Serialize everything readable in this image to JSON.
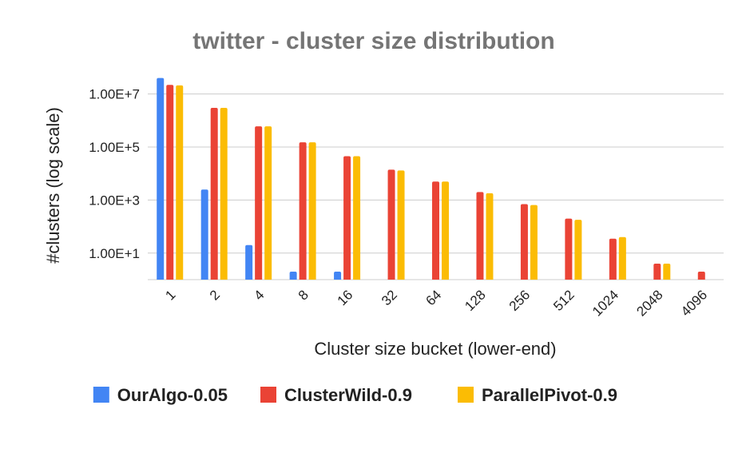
{
  "chart_data": {
    "type": "bar",
    "title": "twitter - cluster size distribution",
    "xlabel": "Cluster size bucket (lower-end)",
    "ylabel": "#clusters (log scale)",
    "yscale": "log",
    "ylim": [
      1,
      60000000
    ],
    "yticks": [
      10,
      1000,
      100000,
      10000000
    ],
    "ytick_labels": [
      "1.00E+1",
      "1.00E+3",
      "1.00E+5",
      "1.00E+7"
    ],
    "grid": true,
    "legend_position": "bottom",
    "categories": [
      "1",
      "2",
      "4",
      "8",
      "16",
      "32",
      "64",
      "128",
      "256",
      "512",
      "1024",
      "2048",
      "4096"
    ],
    "series": [
      {
        "name": "OurAlgo-0.05",
        "color": "#4285F4",
        "values": [
          40000000,
          2500,
          20,
          2,
          2,
          null,
          null,
          null,
          null,
          null,
          null,
          null,
          null
        ]
      },
      {
        "name": "ClusterWild-0.9",
        "color": "#EA4335",
        "values": [
          22000000,
          3000000,
          600000,
          150000,
          45000,
          14000,
          5000,
          2000,
          700,
          200,
          35,
          4,
          2
        ]
      },
      {
        "name": "ParallelPivot-0.9",
        "color": "#FBBC04",
        "values": [
          21000000,
          3000000,
          600000,
          150000,
          45000,
          13000,
          5000,
          1800,
          650,
          180,
          40,
          4,
          null
        ]
      }
    ]
  }
}
